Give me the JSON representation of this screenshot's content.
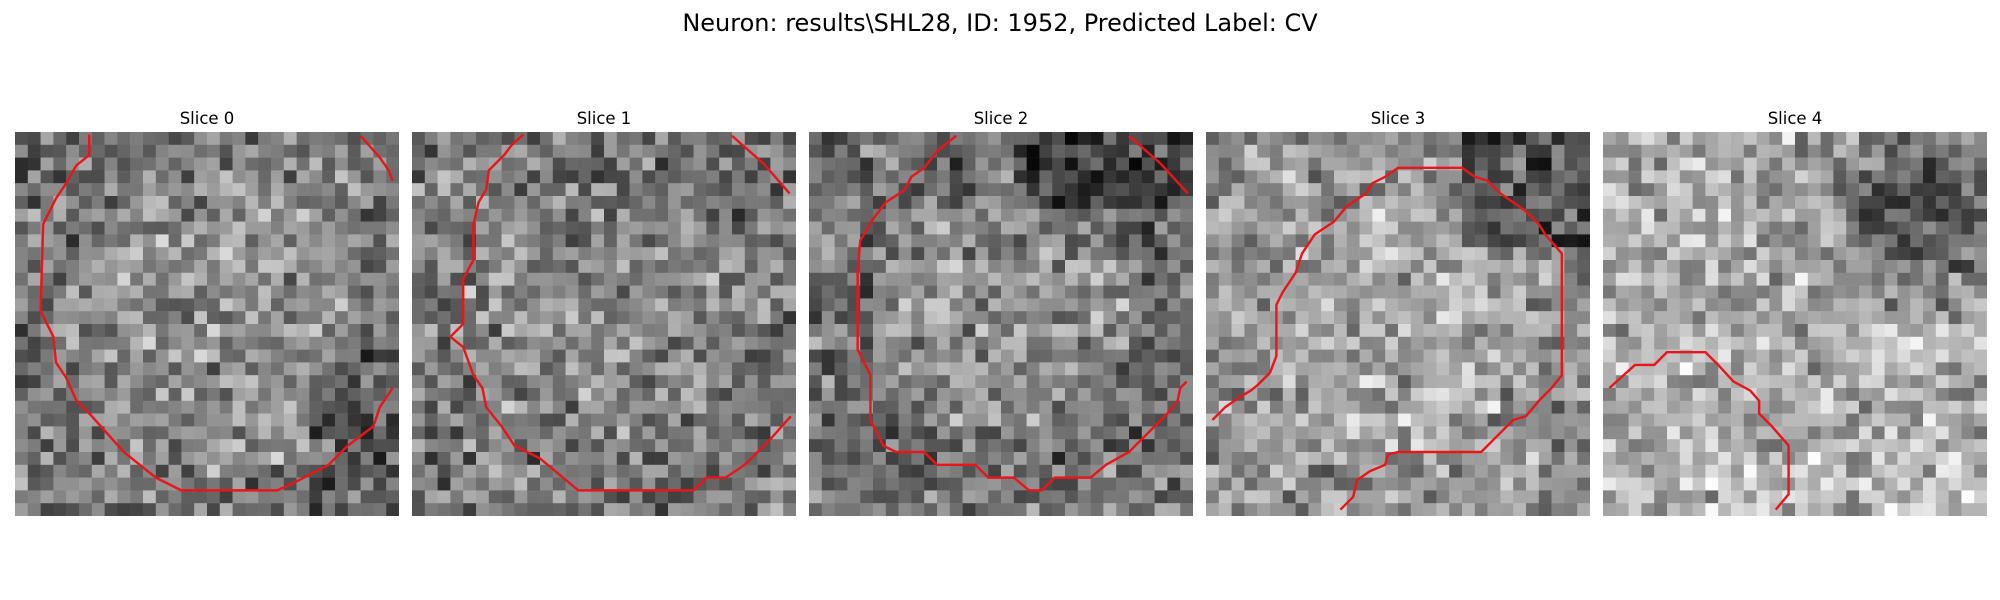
{
  "figure": {
    "title": "Neuron: results\\SHL28, ID: 1952, Predicted Label: CV"
  },
  "chart_data": {
    "type": "heatmap",
    "colormap": "grayscale",
    "contour_color": "#e8161b",
    "grid_size": 30,
    "panels": [
      {
        "title": "Slice 0",
        "seed": 11,
        "contours": [
          [
            [
              5.8,
              0.2
            ],
            [
              5.8,
              1.8
            ],
            [
              4.8,
              2.6
            ],
            [
              4.0,
              4.0
            ],
            [
              3.2,
              5.2
            ],
            [
              2.2,
              7.2
            ],
            [
              2.0,
              14.0
            ],
            [
              3.0,
              16.0
            ],
            [
              3.2,
              18.0
            ],
            [
              4.0,
              19.2
            ],
            [
              4.8,
              21.0
            ],
            [
              6.0,
              22.2
            ],
            [
              7.6,
              24.0
            ],
            [
              8.5,
              25.0
            ],
            [
              11.0,
              27.0
            ],
            [
              13.0,
              28.0
            ],
            [
              20.5,
              28.0
            ],
            [
              22.0,
              27.3
            ],
            [
              24.5,
              26.0
            ],
            [
              26.0,
              24.5
            ],
            [
              28.0,
              23.0
            ],
            [
              28.5,
              21.5
            ],
            [
              29.5,
              20.0
            ]
          ],
          [
            [
              27.0,
              0.3
            ],
            [
              28.5,
              2.0
            ],
            [
              29.2,
              3.0
            ],
            [
              29.5,
              3.8
            ]
          ]
        ]
      },
      {
        "title": "Slice 1",
        "seed": 23,
        "contours": [
          [
            [
              8.7,
              0.2
            ],
            [
              7.8,
              1.0
            ],
            [
              7.2,
              1.8
            ],
            [
              6.0,
              3.0
            ],
            [
              5.8,
              4.5
            ],
            [
              5.2,
              5.5
            ],
            [
              4.8,
              7.2
            ],
            [
              4.8,
              10.0
            ],
            [
              4.0,
              11.5
            ],
            [
              4.0,
              15.0
            ],
            [
              3.0,
              16.0
            ],
            [
              4.0,
              16.8
            ],
            [
              4.8,
              19.0
            ],
            [
              5.5,
              20.0
            ],
            [
              5.8,
              21.5
            ],
            [
              7.0,
              23.0
            ],
            [
              8.0,
              24.5
            ],
            [
              10.0,
              25.5
            ],
            [
              13.0,
              28.0
            ],
            [
              22.0,
              28.0
            ],
            [
              23.0,
              27.0
            ],
            [
              24.5,
              27.0
            ],
            [
              26.0,
              26.0
            ],
            [
              28.0,
              24.0
            ],
            [
              29.6,
              22.2
            ]
          ],
          [
            [
              25.0,
              0.3
            ],
            [
              27.5,
              2.5
            ],
            [
              29.5,
              4.8
            ]
          ]
        ]
      },
      {
        "title": "Slice 2",
        "seed": 37,
        "contours": [
          [
            [
              11.5,
              0.3
            ],
            [
              10.0,
              1.5
            ],
            [
              9.0,
              2.8
            ],
            [
              8.0,
              3.5
            ],
            [
              7.5,
              4.5
            ],
            [
              6.0,
              5.5
            ],
            [
              5.0,
              6.8
            ],
            [
              4.0,
              8.5
            ],
            [
              3.8,
              11.0
            ],
            [
              3.8,
              17.0
            ],
            [
              4.8,
              19.0
            ],
            [
              4.8,
              22.5
            ],
            [
              5.8,
              24.5
            ],
            [
              6.8,
              25.0
            ],
            [
              9.0,
              25.0
            ],
            [
              10.0,
              26.0
            ],
            [
              13.0,
              26.0
            ],
            [
              14.0,
              27.0
            ],
            [
              16.0,
              27.0
            ],
            [
              17.2,
              28.0
            ],
            [
              18.2,
              28.0
            ],
            [
              19.2,
              27.0
            ],
            [
              22.0,
              27.0
            ],
            [
              23.2,
              26.0
            ],
            [
              25.0,
              25.0
            ],
            [
              26.0,
              24.0
            ],
            [
              27.0,
              23.0
            ],
            [
              28.0,
              22.0
            ],
            [
              28.8,
              21.0
            ],
            [
              29.0,
              20.0
            ],
            [
              29.5,
              19.5
            ]
          ],
          [
            [
              25.0,
              0.3
            ],
            [
              27.5,
              2.5
            ],
            [
              29.6,
              4.8
            ]
          ]
        ]
      },
      {
        "title": "Slice 3",
        "seed": 53,
        "contours": [
          [
            [
              10.5,
              29.5
            ],
            [
              11.5,
              28.5
            ],
            [
              11.8,
              27.2
            ],
            [
              12.8,
              26.5
            ],
            [
              14.0,
              26.0
            ],
            [
              14.2,
              25.2
            ],
            [
              15.0,
              25.0
            ],
            [
              21.5,
              25.0
            ],
            [
              22.5,
              24.0
            ],
            [
              24.0,
              22.5
            ],
            [
              25.0,
              22.2
            ],
            [
              26.0,
              21.0
            ],
            [
              27.0,
              20.0
            ],
            [
              27.8,
              19.0
            ],
            [
              27.8,
              9.5
            ],
            [
              26.5,
              8.0
            ],
            [
              26.0,
              7.2
            ],
            [
              25.0,
              6.2
            ],
            [
              24.0,
              5.5
            ],
            [
              23.0,
              4.8
            ],
            [
              22.0,
              3.8
            ],
            [
              21.0,
              3.5
            ],
            [
              20.0,
              2.8
            ],
            [
              15.0,
              2.8
            ],
            [
              14.0,
              3.5
            ],
            [
              13.0,
              4.0
            ],
            [
              12.5,
              4.8
            ],
            [
              11.0,
              5.8
            ],
            [
              10.0,
              7.0
            ],
            [
              8.5,
              8.0
            ],
            [
              7.5,
              9.5
            ],
            [
              7.0,
              11.0
            ],
            [
              6.0,
              12.5
            ],
            [
              5.5,
              13.5
            ],
            [
              5.5,
              17.5
            ],
            [
              5.0,
              18.8
            ],
            [
              4.0,
              19.8
            ],
            [
              3.5,
              20.2
            ],
            [
              2.5,
              20.8
            ],
            [
              1.5,
              21.5
            ],
            [
              0.5,
              22.5
            ]
          ]
        ]
      },
      {
        "title": "Slice 4",
        "seed": 71,
        "contours": [
          [
            [
              0.5,
              20.0
            ],
            [
              2.5,
              18.2
            ],
            [
              4.0,
              18.2
            ],
            [
              5.0,
              17.2
            ],
            [
              8.0,
              17.2
            ],
            [
              9.0,
              18.2
            ],
            [
              10.2,
              19.5
            ],
            [
              11.5,
              20.2
            ],
            [
              12.2,
              21.0
            ],
            [
              12.2,
              22.0
            ],
            [
              13.2,
              23.0
            ],
            [
              14.5,
              24.5
            ],
            [
              14.5,
              28.3
            ],
            [
              13.5,
              29.5
            ]
          ]
        ]
      }
    ]
  }
}
